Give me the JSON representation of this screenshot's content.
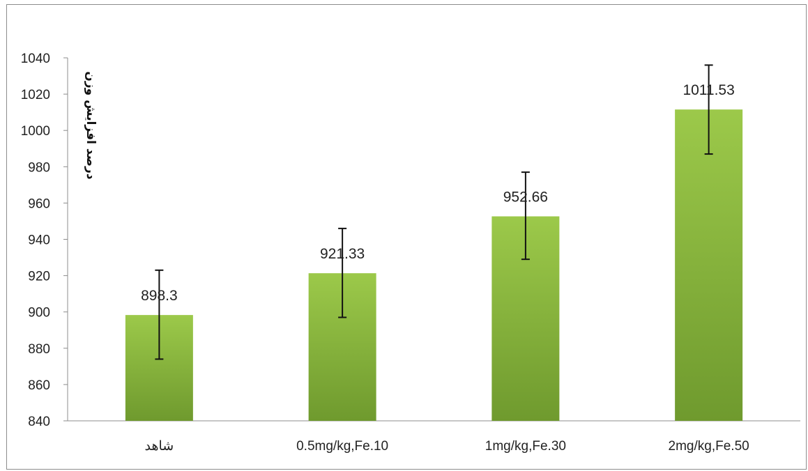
{
  "chart_data": {
    "type": "bar",
    "ylabel": "درصد افزایش وزن",
    "categories": [
      "شاهد",
      "0.5mg/kg,Fe.10",
      "1mg/kg,Fe.30",
      "2mg/kg,Fe.50"
    ],
    "values": [
      898.3,
      921.33,
      952.66,
      1011.53
    ],
    "data_labels": [
      "898.3",
      "921.33",
      "952.66",
      "1011.53"
    ],
    "error_bars": [
      {
        "low": 874,
        "high": 923
      },
      {
        "low": 897,
        "high": 946
      },
      {
        "low": 929,
        "high": 977
      },
      {
        "low": 987,
        "high": 1036
      }
    ],
    "ylim": [
      840,
      1040
    ],
    "yticks": [
      840,
      860,
      880,
      900,
      920,
      940,
      960,
      980,
      1000,
      1020,
      1040
    ],
    "grid": false,
    "legend": "none",
    "colors": {
      "bar_top": "#9cc94a",
      "bar_bottom": "#6f9a2e",
      "error_bar": "#111111",
      "axis": "#8c8c8c"
    }
  }
}
